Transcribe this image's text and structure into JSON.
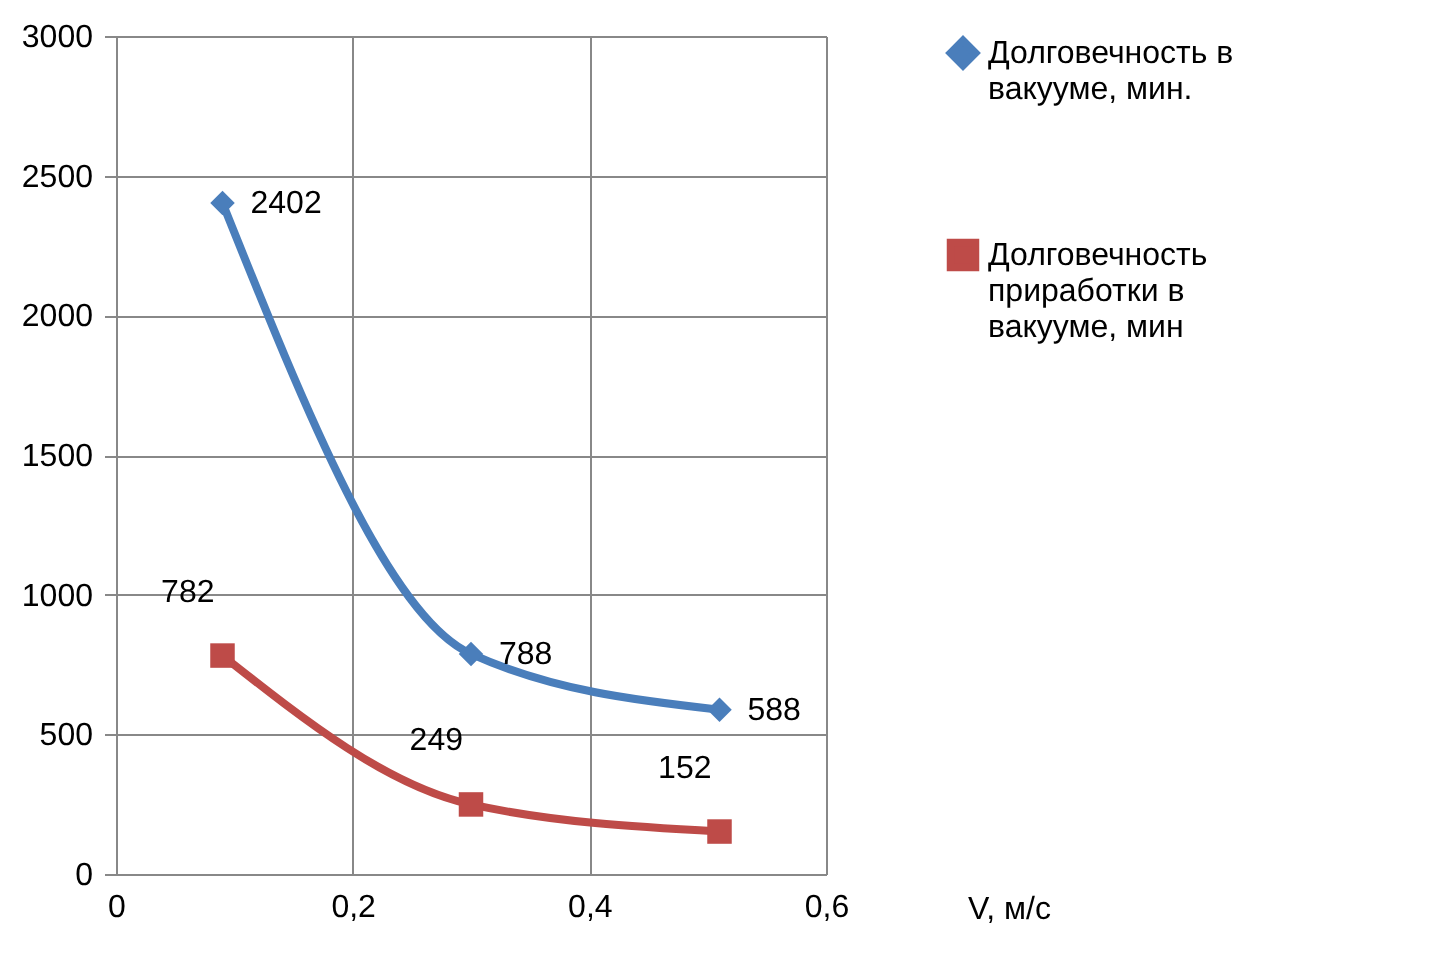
{
  "chart_data": {
    "type": "line",
    "xlabel": "V, м/с",
    "x": [
      0.09,
      0.3,
      0.51
    ],
    "series": [
      {
        "name": "Долговечность в вакууме, мин.",
        "color": "#4a7ebb",
        "marker": "diamond",
        "values": [
          2402,
          788,
          588
        ]
      },
      {
        "name": "Долговечность приработки в вакууме, мин",
        "color": "#be4b48",
        "marker": "square",
        "values": [
          782,
          249,
          152
        ]
      }
    ],
    "xlim": [
      0,
      0.6
    ],
    "xticks": [
      0,
      {
        "value": 0.2,
        "label": "0,2"
      },
      {
        "value": 0.4,
        "label": "0,4"
      },
      {
        "value": 0.6,
        "label": "0,6"
      }
    ],
    "ylim": [
      0,
      3000
    ],
    "yticks": [
      0,
      500,
      1000,
      1500,
      2000,
      2500,
      3000
    ],
    "grid": true,
    "legend": "right",
    "data_labels": true,
    "line_style": "solid"
  }
}
